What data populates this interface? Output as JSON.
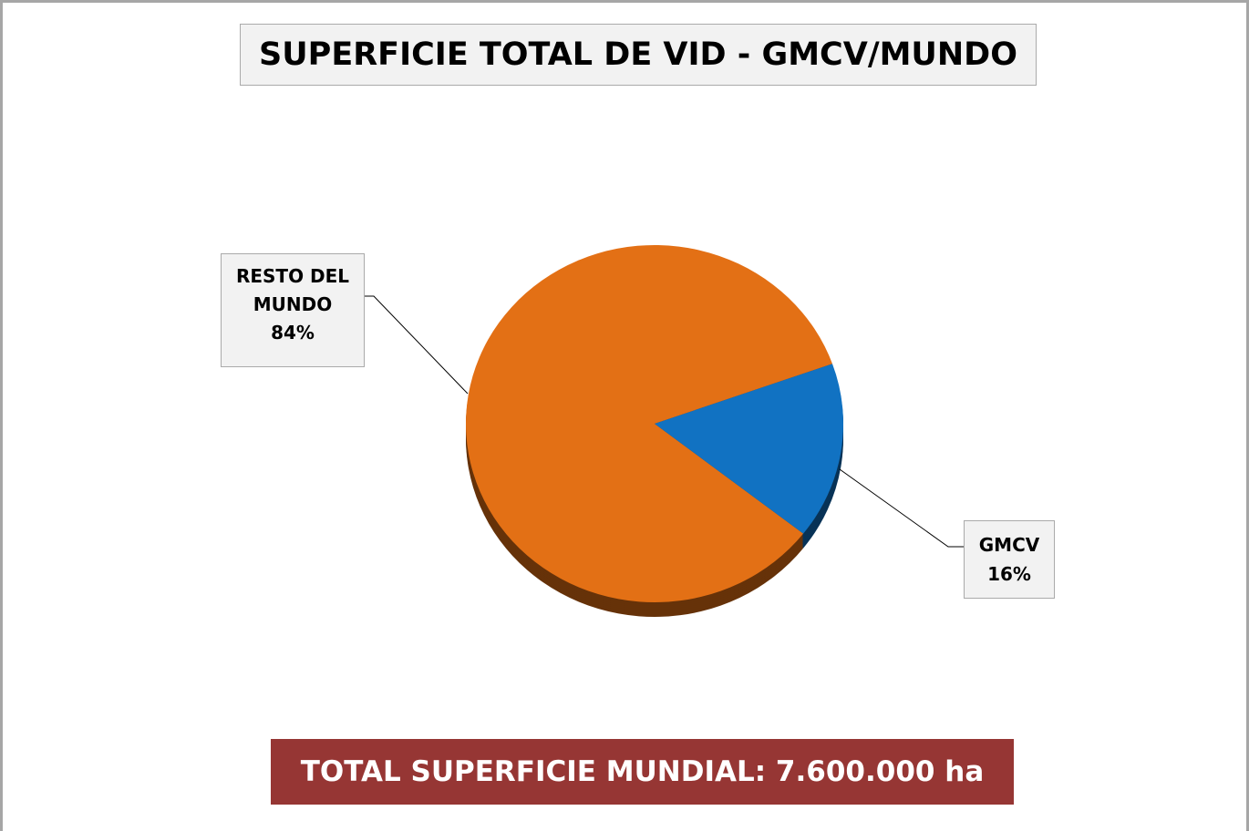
{
  "chart_data": {
    "type": "pie",
    "title": "SUPERFICIE TOTAL DE VID - GMCV/MUNDO",
    "categories": [
      "RESTO DEL MUNDO",
      "GMCV"
    ],
    "values": [
      84,
      16
    ],
    "value_labels": [
      "84%",
      "16%"
    ],
    "colors": [
      "#e37015",
      "#1172c2"
    ],
    "annotation": "TOTAL SUPERFICIE MUNDIAL: 7.600.000 ha"
  }
}
